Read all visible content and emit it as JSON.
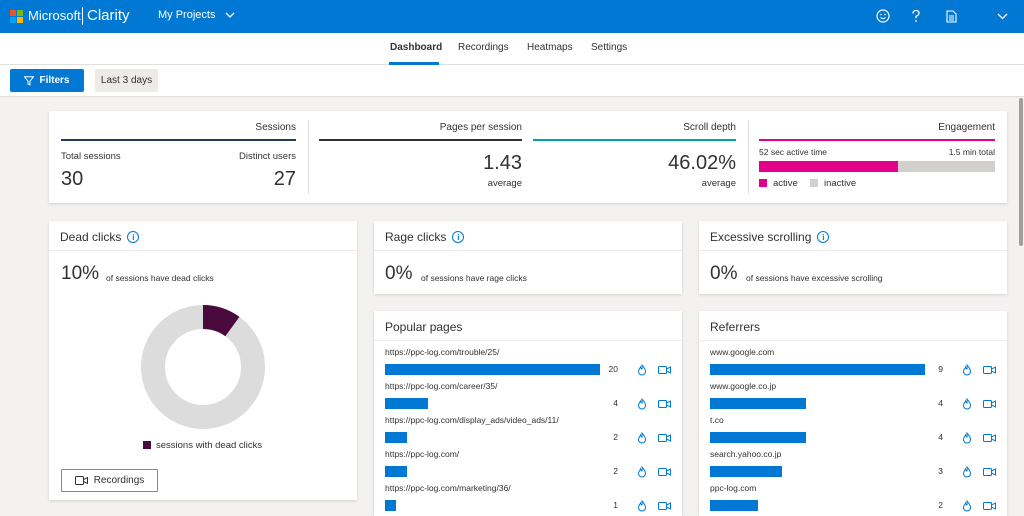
{
  "header": {
    "brand_company": "Microsoft",
    "brand_product": "Clarity",
    "projects_label": "My Projects",
    "icons": [
      "smiley-icon",
      "help-icon",
      "document-icon",
      "chevron-down-icon"
    ],
    "colors": {
      "accent": "#0078d4",
      "logo": [
        "#f25022",
        "#7fba00",
        "#00a4ef",
        "#ffb900"
      ]
    }
  },
  "tabs": [
    {
      "label": "Dashboard",
      "active": true
    },
    {
      "label": "Recordings",
      "active": false
    },
    {
      "label": "Heatmaps",
      "active": false
    },
    {
      "label": "Settings",
      "active": false
    }
  ],
  "filters": {
    "filters_label": "Filters",
    "range_label": "Last 3 days"
  },
  "stats": {
    "sessions": {
      "heading": "Sessions",
      "total_label": "Total sessions",
      "total_value": "30",
      "distinct_label": "Distinct users",
      "distinct_value": "27"
    },
    "pages_per_session": {
      "heading": "Pages per session",
      "value": "1.43",
      "sub": "average"
    },
    "scroll_depth": {
      "heading": "Scroll depth",
      "value": "46.02%",
      "sub": "average"
    },
    "engagement": {
      "heading": "Engagement",
      "active_time": "52 sec active time",
      "total_time": "1.5 min total",
      "active_fraction": 0.59,
      "legend_active": "active",
      "legend_inactive": "inactive",
      "colors": {
        "active": "#e3008c",
        "inactive": "#d2d0ce"
      }
    },
    "line_colors": {
      "sessions": "#243a5e",
      "pages": "#323130",
      "scroll": "#00a5a5",
      "engagement": "#e3008c"
    }
  },
  "dead_clicks": {
    "title": "Dead clicks",
    "percent": "10%",
    "description": "of sessions have dead clicks",
    "fraction": 0.1,
    "legend": "sessions with dead clicks",
    "recordings_label": "Recordings",
    "colors": {
      "slice": "#4b0a3e",
      "rest": "#dcdcdc"
    }
  },
  "rage_clicks": {
    "title": "Rage clicks",
    "percent": "0%",
    "description": "of sessions have rage clicks"
  },
  "excessive_scrolling": {
    "title": "Excessive scrolling",
    "percent": "0%",
    "description": "of sessions have excessive scrolling"
  },
  "popular_pages": {
    "title": "Popular pages",
    "max": 20,
    "rows": [
      {
        "label": "https://ppc-log.com/trouble/25/",
        "count": 20
      },
      {
        "label": "https://ppc-log.com/career/35/",
        "count": 4
      },
      {
        "label": "https://ppc-log.com/display_ads/video_ads/11/",
        "count": 2
      },
      {
        "label": "https://ppc-log.com/",
        "count": 2
      },
      {
        "label": "https://ppc-log.com/marketing/36/",
        "count": 1
      }
    ]
  },
  "referrers": {
    "title": "Referrers",
    "max": 9,
    "rows": [
      {
        "label": "www.google.com",
        "count": 9
      },
      {
        "label": "www.google.co.jp",
        "count": 4
      },
      {
        "label": "t.co",
        "count": 4
      },
      {
        "label": "search.yahoo.co.jp",
        "count": 3
      },
      {
        "label": "ppc-log.com",
        "count": 2
      }
    ]
  }
}
